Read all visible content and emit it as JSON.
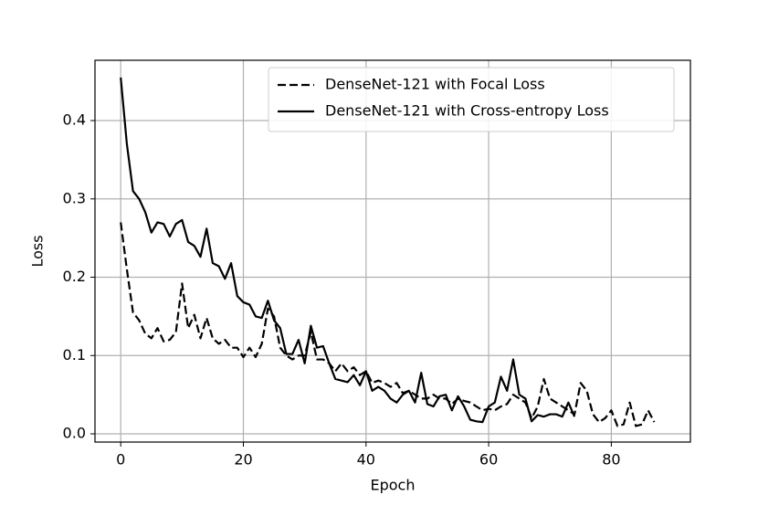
{
  "chart_data": {
    "type": "line",
    "x_label": "Epoch",
    "y_label": "Loss",
    "x": [
      0,
      1,
      2,
      3,
      4,
      5,
      6,
      7,
      8,
      9,
      10,
      11,
      12,
      13,
      14,
      15,
      16,
      17,
      18,
      19,
      20,
      21,
      22,
      23,
      24,
      25,
      26,
      27,
      28,
      29,
      30,
      31,
      32,
      33,
      34,
      35,
      36,
      37,
      38,
      39,
      40,
      41,
      42,
      43,
      44,
      45,
      46,
      47,
      48,
      49,
      50,
      51,
      52,
      53,
      54,
      55,
      56,
      57,
      58,
      59,
      60,
      61,
      62,
      63,
      64,
      65,
      66,
      67,
      68,
      69,
      70,
      71,
      72,
      73,
      74,
      75,
      76,
      77,
      78,
      79,
      80,
      81,
      82,
      83,
      84,
      85,
      86,
      87
    ],
    "series": [
      {
        "name": "DenseNet-121 with Focal Loss",
        "color": "#000000",
        "linestyle": "dashed",
        "values": [
          0.27,
          0.21,
          0.155,
          0.145,
          0.128,
          0.122,
          0.135,
          0.118,
          0.12,
          0.13,
          0.192,
          0.135,
          0.152,
          0.122,
          0.148,
          0.122,
          0.115,
          0.12,
          0.11,
          0.11,
          0.098,
          0.11,
          0.098,
          0.115,
          0.16,
          0.15,
          0.11,
          0.1,
          0.095,
          0.1,
          0.1,
          0.13,
          0.095,
          0.095,
          0.09,
          0.08,
          0.09,
          0.08,
          0.085,
          0.075,
          0.08,
          0.065,
          0.068,
          0.065,
          0.06,
          0.065,
          0.052,
          0.055,
          0.05,
          0.045,
          0.045,
          0.05,
          0.045,
          0.045,
          0.038,
          0.045,
          0.042,
          0.04,
          0.035,
          0.03,
          0.032,
          0.03,
          0.035,
          0.038,
          0.05,
          0.045,
          0.04,
          0.02,
          0.035,
          0.07,
          0.045,
          0.04,
          0.035,
          0.03,
          0.025,
          0.065,
          0.055,
          0.025,
          0.015,
          0.02,
          0.03,
          0.01,
          0.012,
          0.04,
          0.01,
          0.012,
          0.03,
          0.015
        ]
      },
      {
        "name": "DenseNet-121 with Cross-entropy Loss",
        "color": "#000000",
        "linestyle": "solid",
        "values": [
          0.455,
          0.37,
          0.31,
          0.3,
          0.283,
          0.257,
          0.27,
          0.268,
          0.252,
          0.268,
          0.273,
          0.245,
          0.24,
          0.226,
          0.262,
          0.218,
          0.214,
          0.198,
          0.218,
          0.176,
          0.168,
          0.165,
          0.15,
          0.148,
          0.17,
          0.145,
          0.135,
          0.102,
          0.102,
          0.12,
          0.09,
          0.138,
          0.11,
          0.112,
          0.09,
          0.07,
          0.068,
          0.066,
          0.075,
          0.062,
          0.08,
          0.055,
          0.06,
          0.055,
          0.045,
          0.04,
          0.05,
          0.055,
          0.04,
          0.078,
          0.038,
          0.035,
          0.048,
          0.05,
          0.03,
          0.048,
          0.035,
          0.018,
          0.016,
          0.015,
          0.035,
          0.04,
          0.073,
          0.055,
          0.095,
          0.05,
          0.045,
          0.016,
          0.024,
          0.022,
          0.025,
          0.025,
          0.022,
          0.04,
          0.022,
          null,
          null,
          null,
          null,
          null,
          null,
          null,
          null,
          null,
          null,
          null,
          null,
          null
        ]
      }
    ],
    "xlim": [
      -4.2,
      92.9
    ],
    "ylim": [
      -0.0105,
      0.477
    ],
    "xticks": [
      0,
      20,
      40,
      60,
      80
    ],
    "yticks": [
      {
        "value": 0,
        "label": "0.0"
      },
      0.1,
      0.2,
      0.3,
      0.4
    ],
    "grid": true,
    "legend_loc": "upper right"
  }
}
